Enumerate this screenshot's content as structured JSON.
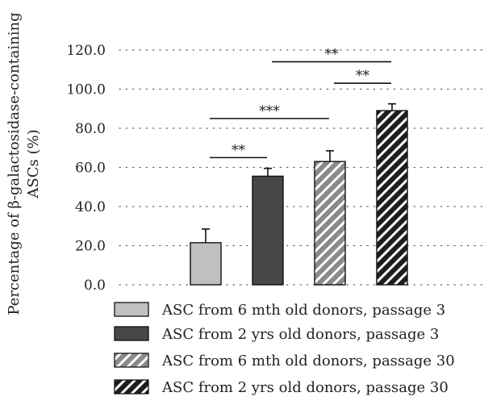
{
  "chart_data": {
    "type": "bar",
    "ylabel_line1": "Percentage of β-galactosidase-containing",
    "ylabel_line2": "ASCs (%)",
    "ylim": [
      0,
      120
    ],
    "yticks": [
      "0.0",
      "20.0",
      "40.0",
      "60.0",
      "80.0",
      "100.0",
      "120.0"
    ],
    "grid": true,
    "legend_position": "bottom",
    "categories": [
      "ASC from 6 mth old donors, passage 3",
      "ASC from 2 yrs old donors, passage 3",
      "ASC from 6 mth old donors, passage 30",
      "ASC from 2 yrs old donors, passage 30"
    ],
    "values": [
      21.5,
      55.5,
      63.0,
      89.0
    ],
    "errors": [
      7.0,
      4.0,
      5.5,
      3.5
    ],
    "fills": [
      {
        "type": "solid",
        "color": "#c0c0c0"
      },
      {
        "type": "solid",
        "color": "#474747"
      },
      {
        "type": "hatch",
        "bg": "#8a8a8a",
        "stripe": "#ffffff"
      },
      {
        "type": "hatch",
        "bg": "#1e1e1e",
        "stripe": "#ffffff"
      }
    ],
    "significance": [
      {
        "from": 0,
        "to": 1,
        "label": "**",
        "y": 65
      },
      {
        "from": 0,
        "to": 2,
        "label": "***",
        "y": 85
      },
      {
        "from": 1,
        "to": 3,
        "label": "**",
        "y": 114
      },
      {
        "from": 2,
        "to": 3,
        "label": "**",
        "y": 103
      }
    ]
  }
}
